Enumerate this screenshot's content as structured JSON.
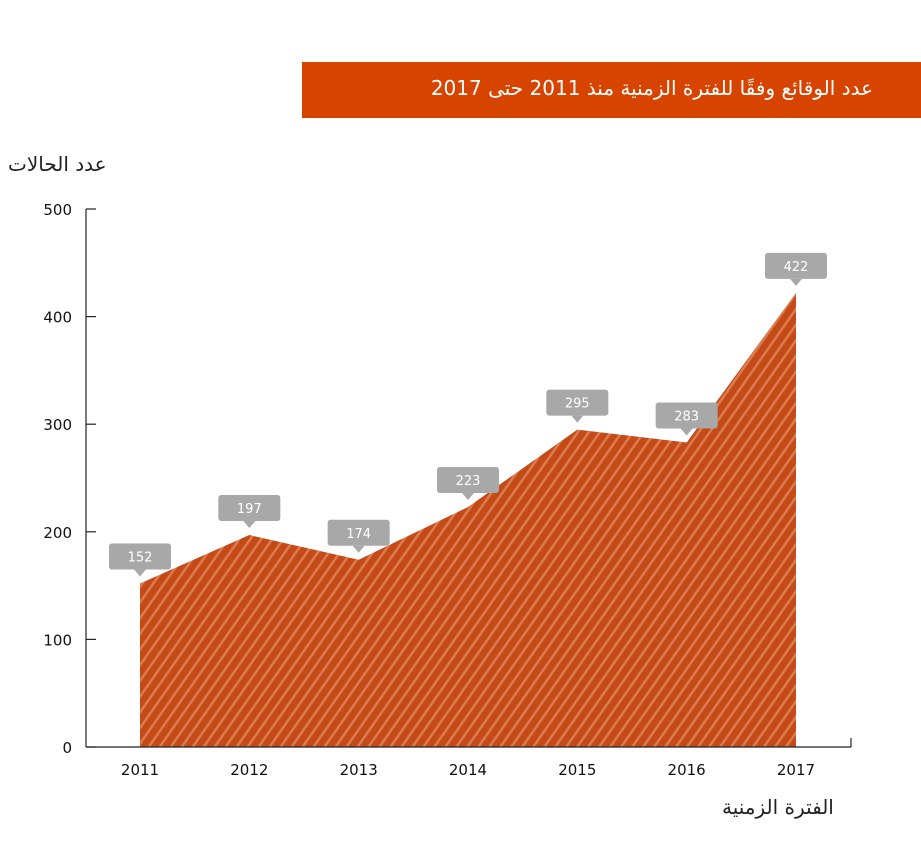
{
  "chart_data": {
    "type": "area",
    "title": "عدد الوقائع وفقًا للفترة الزمنية منذ 2011 حتى 2017",
    "xlabel": "الفترة الزمنية",
    "ylabel": "عدد الحالات",
    "categories": [
      "2011",
      "2012",
      "2013",
      "2014",
      "2015",
      "2016",
      "2017"
    ],
    "values": [
      152,
      197,
      174,
      223,
      295,
      283,
      422
    ],
    "ylim": [
      0,
      500
    ],
    "yticks": [
      0,
      100,
      200,
      300,
      400,
      500
    ],
    "grid": false,
    "colors": {
      "area": "#c9501c",
      "stripe": "#e07a4c",
      "title_bg": "#d64400",
      "label_bg": "#a8a8a8"
    }
  }
}
